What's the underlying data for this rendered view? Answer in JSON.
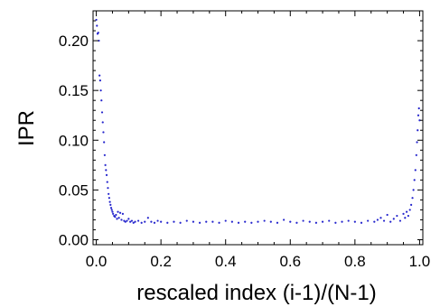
{
  "chart_data": {
    "type": "scatter",
    "title": "",
    "xlabel": "rescaled index (i-1)/(N-1)",
    "ylabel": "IPR",
    "xlim": [
      -0.01,
      1.01
    ],
    "ylim": [
      -0.005,
      0.23
    ],
    "x_ticks": [
      "0.0",
      "0.2",
      "0.4",
      "0.6",
      "0.8",
      "1.0"
    ],
    "y_ticks": [
      "0.00",
      "0.05",
      "0.10",
      "0.15",
      "0.20"
    ],
    "grid": false,
    "legend": "none",
    "marker_color": "#2222cc",
    "series": [
      {
        "x": [
          0.0,
          0.002,
          0.004,
          0.006,
          0.008,
          0.01,
          0.012,
          0.014,
          0.016,
          0.018,
          0.02,
          0.022,
          0.024,
          0.026,
          0.028,
          0.03,
          0.032,
          0.034,
          0.036,
          0.038,
          0.04,
          0.042,
          0.044,
          0.046,
          0.048,
          0.05,
          0.052,
          0.055,
          0.058,
          0.061,
          0.064,
          0.067,
          0.07,
          0.074,
          0.078,
          0.082,
          0.086,
          0.09,
          0.095,
          0.1,
          0.105,
          0.11,
          0.115,
          0.12,
          0.13,
          0.14,
          0.15,
          0.16,
          0.17,
          0.18,
          0.19,
          0.2,
          0.22,
          0.24,
          0.26,
          0.28,
          0.3,
          0.32,
          0.34,
          0.36,
          0.38,
          0.4,
          0.42,
          0.44,
          0.46,
          0.48,
          0.5,
          0.52,
          0.54,
          0.56,
          0.58,
          0.6,
          0.62,
          0.64,
          0.66,
          0.68,
          0.7,
          0.72,
          0.74,
          0.76,
          0.78,
          0.8,
          0.82,
          0.84,
          0.86,
          0.87,
          0.88,
          0.89,
          0.9,
          0.91,
          0.92,
          0.93,
          0.94,
          0.95,
          0.955,
          0.96,
          0.965,
          0.97,
          0.974,
          0.978,
          0.981,
          0.984,
          0.987,
          0.99,
          0.992,
          0.994,
          0.996,
          0.998,
          1.0
        ],
        "y": [
          0.221,
          0.215,
          0.207,
          0.208,
          0.2,
          0.165,
          0.16,
          0.15,
          0.14,
          0.128,
          0.118,
          0.108,
          0.098,
          0.085,
          0.075,
          0.07,
          0.065,
          0.058,
          0.052,
          0.046,
          0.042,
          0.038,
          0.035,
          0.032,
          0.03,
          0.028,
          0.026,
          0.024,
          0.023,
          0.025,
          0.021,
          0.028,
          0.022,
          0.027,
          0.02,
          0.026,
          0.019,
          0.018,
          0.019,
          0.021,
          0.018,
          0.019,
          0.017,
          0.018,
          0.019,
          0.017,
          0.018,
          0.022,
          0.018,
          0.017,
          0.019,
          0.018,
          0.017,
          0.018,
          0.017,
          0.019,
          0.018,
          0.017,
          0.018,
          0.018,
          0.017,
          0.019,
          0.018,
          0.017,
          0.018,
          0.017,
          0.018,
          0.019,
          0.018,
          0.017,
          0.02,
          0.018,
          0.017,
          0.019,
          0.018,
          0.017,
          0.018,
          0.019,
          0.017,
          0.018,
          0.019,
          0.018,
          0.017,
          0.019,
          0.018,
          0.02,
          0.022,
          0.019,
          0.025,
          0.018,
          0.021,
          0.024,
          0.019,
          0.026,
          0.022,
          0.028,
          0.024,
          0.03,
          0.035,
          0.042,
          0.05,
          0.06,
          0.07,
          0.085,
          0.098,
          0.11,
          0.125,
          0.132,
          0.12
        ]
      }
    ]
  }
}
